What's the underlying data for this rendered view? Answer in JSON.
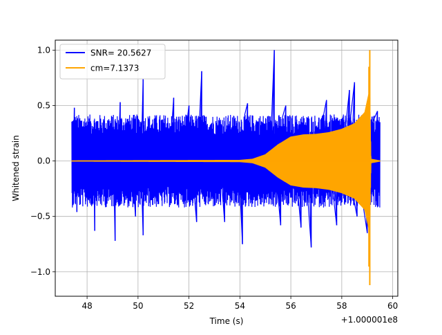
{
  "chart_data": {
    "type": "line",
    "title": "",
    "xlabel": "Time (s)",
    "ylabel": "Whitened strain",
    "x_offset_label": "+1.000001e8",
    "xlim": [
      46.75,
      60.2
    ],
    "ylim": [
      -1.22,
      1.09
    ],
    "xticks": [
      48,
      50,
      52,
      54,
      56,
      58,
      60
    ],
    "yticks": [
      -1.0,
      -0.5,
      0.0,
      0.5,
      1.0
    ],
    "xtick_labels": [
      "48",
      "50",
      "52",
      "54",
      "56",
      "58",
      "60"
    ],
    "ytick_labels": [
      "−1.0",
      "−0.5",
      "0.0",
      "0.5",
      "1.0"
    ],
    "grid": true,
    "legend_position": "top-left",
    "series": [
      {
        "name": "SNR= 20.5627",
        "color": "#0000ff",
        "x_range": [
          47.4,
          59.5
        ],
        "band": {
          "typical_upper": 0.42,
          "typical_lower": -0.42
        },
        "spikes": [
          {
            "x": 47.5,
            "y": 0.48
          },
          {
            "x": 47.6,
            "y": -0.46
          },
          {
            "x": 48.3,
            "y": -0.63
          },
          {
            "x": 49.1,
            "y": -0.72
          },
          {
            "x": 49.3,
            "y": 0.53
          },
          {
            "x": 49.9,
            "y": -0.5
          },
          {
            "x": 50.2,
            "y": 0.74
          },
          {
            "x": 50.2,
            "y": -0.67
          },
          {
            "x": 51.4,
            "y": 0.57
          },
          {
            "x": 52.0,
            "y": 0.5
          },
          {
            "x": 52.3,
            "y": -0.55
          },
          {
            "x": 52.5,
            "y": 0.81
          },
          {
            "x": 53.4,
            "y": -0.55
          },
          {
            "x": 54.1,
            "y": -0.75
          },
          {
            "x": 54.3,
            "y": 0.52
          },
          {
            "x": 55.35,
            "y": 1.0
          },
          {
            "x": 55.6,
            "y": -0.58
          },
          {
            "x": 55.8,
            "y": 0.5
          },
          {
            "x": 56.4,
            "y": -0.6
          },
          {
            "x": 56.8,
            "y": -0.78
          },
          {
            "x": 57.4,
            "y": 0.55
          },
          {
            "x": 57.8,
            "y": -0.58
          },
          {
            "x": 58.3,
            "y": 0.64
          },
          {
            "x": 58.5,
            "y": 0.71
          },
          {
            "x": 58.6,
            "y": -0.5
          },
          {
            "x": 59.0,
            "y": -0.65
          },
          {
            "x": 59.4,
            "y": 0.45
          }
        ]
      },
      {
        "name": "cm=7.1373",
        "color": "#ffa500",
        "x_range": [
          47.4,
          59.5
        ],
        "envelope": [
          {
            "x": 47.4,
            "amp": 0.005
          },
          {
            "x": 54.0,
            "amp": 0.01
          },
          {
            "x": 54.5,
            "amp": 0.02
          },
          {
            "x": 55.0,
            "amp": 0.06
          },
          {
            "x": 55.5,
            "amp": 0.15
          },
          {
            "x": 56.0,
            "amp": 0.22
          },
          {
            "x": 56.5,
            "amp": 0.24
          },
          {
            "x": 57.0,
            "amp": 0.245
          },
          {
            "x": 57.5,
            "amp": 0.26
          },
          {
            "x": 58.0,
            "amp": 0.29
          },
          {
            "x": 58.5,
            "amp": 0.34
          },
          {
            "x": 58.9,
            "amp": 0.44
          },
          {
            "x": 59.05,
            "amp": 0.6
          },
          {
            "x": 59.1,
            "amp": 0.62
          },
          {
            "x": 59.15,
            "amp": 0.02
          },
          {
            "x": 59.5,
            "amp": 0.005
          }
        ],
        "peak": {
          "x": 59.1,
          "y_max": 1.0,
          "y_min": -1.12
        }
      }
    ]
  }
}
